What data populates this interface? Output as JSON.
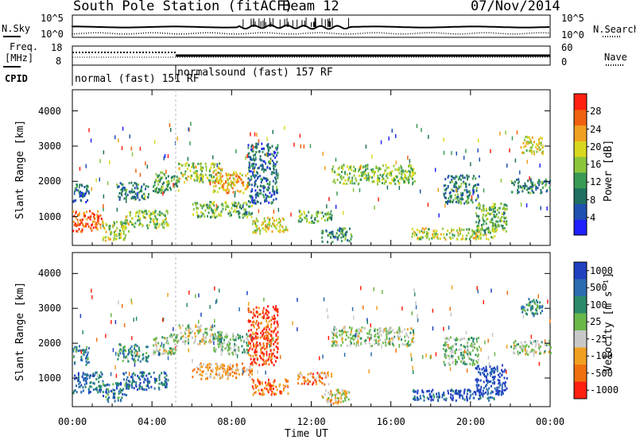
{
  "header": {
    "station": "South Pole Station (fitACF)",
    "beam": "Beam 12",
    "date": "07/Nov/2014"
  },
  "strip_labels": {
    "nsky": "N.Sky",
    "nsky_top": "10^5",
    "nsky_bottom": "10^0",
    "nsearch": "N.Search",
    "nsearch_top": "10^5",
    "nsearch_bottom": "10^0",
    "freq_line1": "Freq.",
    "freq_line2": "[MHz]",
    "freq_top": "18",
    "freq_bottom": "8",
    "nave": "Nave",
    "nave_top": "60",
    "nave_bottom": "0",
    "cpid": "CPID",
    "cpid_mode1": "normal (fast) 151 RF",
    "cpid_mode2": "normalsound (fast) 157 RF"
  },
  "chart_data": [
    {
      "type": "heatmap",
      "quantity": "Power",
      "ylabel": "Slant Range [km]",
      "xlabel": "Time UT",
      "x_ticks": [
        "00:00",
        "04:00",
        "08:00",
        "12:00",
        "16:00",
        "20:00",
        "00:00"
      ],
      "xlim_hours": [
        0,
        24
      ],
      "y_ticks": [
        "1000",
        "2000",
        "3000",
        "4000"
      ],
      "ylim": [
        180,
        4600
      ],
      "colorbar": {
        "label": "Power [dB]",
        "ticks": [
          "4",
          "8",
          "12",
          "16",
          "20",
          "24",
          "28"
        ],
        "range": [
          0,
          30
        ],
        "colors": [
          "#2020ff",
          "#2050b0",
          "#207060",
          "#3a9a55",
          "#8cc63c",
          "#d8d820",
          "#f0a020",
          "#f06010",
          "#ff2010"
        ]
      },
      "echo_regions": [
        {
          "t0": 0.0,
          "t1": 0.8,
          "r0": 1400,
          "r1": 1950,
          "level": 0.25
        },
        {
          "t0": 0.0,
          "t1": 1.5,
          "r0": 600,
          "r1": 1200,
          "level": 0.85
        },
        {
          "t0": 1.5,
          "t1": 2.8,
          "r0": 350,
          "r1": 900,
          "level": 0.55
        },
        {
          "t0": 2.5,
          "t1": 4.8,
          "r0": 700,
          "r1": 1200,
          "level": 0.5
        },
        {
          "t0": 2.2,
          "t1": 3.8,
          "r0": 1500,
          "r1": 2000,
          "level": 0.3
        },
        {
          "t0": 4.0,
          "t1": 5.3,
          "r0": 1700,
          "r1": 2300,
          "level": 0.4
        },
        {
          "t0": 5.3,
          "t1": 7.5,
          "r0": 2000,
          "r1": 2550,
          "level": 0.55
        },
        {
          "t0": 7.0,
          "t1": 8.8,
          "r0": 1700,
          "r1": 2300,
          "level": 0.7
        },
        {
          "t0": 6.0,
          "t1": 9.0,
          "r0": 1000,
          "r1": 1450,
          "level": 0.45
        },
        {
          "t0": 8.8,
          "t1": 10.3,
          "r0": 1400,
          "r1": 3100,
          "level": 0.25
        },
        {
          "t0": 9.0,
          "t1": 10.8,
          "r0": 550,
          "r1": 1000,
          "level": 0.6
        },
        {
          "t0": 11.3,
          "t1": 13.0,
          "r0": 850,
          "r1": 1200,
          "level": 0.45
        },
        {
          "t0": 12.5,
          "t1": 14.0,
          "r0": 300,
          "r1": 700,
          "level": 0.35
        },
        {
          "t0": 13.0,
          "t1": 17.2,
          "r0": 1950,
          "r1": 2500,
          "level": 0.5
        },
        {
          "t0": 17.0,
          "t1": 21.2,
          "r0": 380,
          "r1": 700,
          "level": 0.55
        },
        {
          "t0": 18.6,
          "t1": 20.4,
          "r0": 1400,
          "r1": 2200,
          "level": 0.3
        },
        {
          "t0": 20.2,
          "t1": 21.8,
          "r0": 550,
          "r1": 1400,
          "level": 0.45
        },
        {
          "t0": 22.0,
          "t1": 24.0,
          "r0": 1700,
          "r1": 2100,
          "level": 0.3
        },
        {
          "t0": 22.5,
          "t1": 23.6,
          "r0": 2800,
          "r1": 3300,
          "level": 0.6
        }
      ]
    },
    {
      "type": "heatmap",
      "quantity": "Velocity",
      "ylabel": "Slant Range [km]",
      "xlabel": "Time UT",
      "x_ticks": [
        "00:00",
        "04:00",
        "08:00",
        "12:00",
        "16:00",
        "20:00",
        "00:00"
      ],
      "xlim_hours": [
        0,
        24
      ],
      "y_ticks": [
        "1000",
        "2000",
        "3000",
        "4000"
      ],
      "ylim": [
        180,
        4600
      ],
      "colorbar": {
        "label": "Velocity [m s⁻¹]",
        "ticks": [
          "1000",
          "500",
          "100",
          "25",
          "-25",
          "-100",
          "-500",
          "-1000"
        ],
        "range": [
          -1000,
          1000
        ],
        "colors": [
          "#2040c0",
          "#2a6cb0",
          "#2a8a6a",
          "#6ab84a",
          "#c8c8c8",
          "#f0a020",
          "#f07010",
          "#ff2010"
        ]
      },
      "echo_regions": [
        {
          "t0": 0.0,
          "t1": 0.8,
          "r0": 1400,
          "r1": 1950,
          "level": 0.3
        },
        {
          "t0": 0.0,
          "t1": 1.5,
          "r0": 600,
          "r1": 1200,
          "level": 0.2
        },
        {
          "t0": 1.5,
          "t1": 2.8,
          "r0": 350,
          "r1": 900,
          "level": 0.25
        },
        {
          "t0": 2.5,
          "t1": 4.8,
          "r0": 700,
          "r1": 1200,
          "level": 0.2
        },
        {
          "t0": 2.2,
          "t1": 3.8,
          "r0": 1500,
          "r1": 2000,
          "level": 0.3
        },
        {
          "t0": 4.0,
          "t1": 5.3,
          "r0": 1700,
          "r1": 2300,
          "level": 0.5
        },
        {
          "t0": 5.3,
          "t1": 7.5,
          "r0": 2000,
          "r1": 2550,
          "level": 0.5
        },
        {
          "t0": 7.0,
          "t1": 8.8,
          "r0": 1700,
          "r1": 2300,
          "level": 0.45
        },
        {
          "t0": 6.0,
          "t1": 9.0,
          "r0": 1000,
          "r1": 1450,
          "level": 0.7
        },
        {
          "t0": 8.8,
          "t1": 10.3,
          "r0": 1400,
          "r1": 3100,
          "level": 0.9
        },
        {
          "t0": 9.0,
          "t1": 10.8,
          "r0": 550,
          "r1": 1000,
          "level": 0.8
        },
        {
          "t0": 11.3,
          "t1": 13.0,
          "r0": 850,
          "r1": 1200,
          "level": 0.75
        },
        {
          "t0": 12.5,
          "t1": 14.0,
          "r0": 300,
          "r1": 700,
          "level": 0.6
        },
        {
          "t0": 13.0,
          "t1": 17.2,
          "r0": 1950,
          "r1": 2500,
          "level": 0.5
        },
        {
          "t0": 17.0,
          "t1": 21.2,
          "r0": 380,
          "r1": 700,
          "level": 0.15
        },
        {
          "t0": 18.6,
          "t1": 20.4,
          "r0": 1400,
          "r1": 2200,
          "level": 0.45
        },
        {
          "t0": 20.2,
          "t1": 21.8,
          "r0": 550,
          "r1": 1400,
          "level": 0.05
        },
        {
          "t0": 22.0,
          "t1": 24.0,
          "r0": 1700,
          "r1": 2100,
          "level": 0.5
        },
        {
          "t0": 22.5,
          "t1": 23.6,
          "r0": 2800,
          "r1": 3300,
          "level": 0.3
        }
      ]
    }
  ]
}
